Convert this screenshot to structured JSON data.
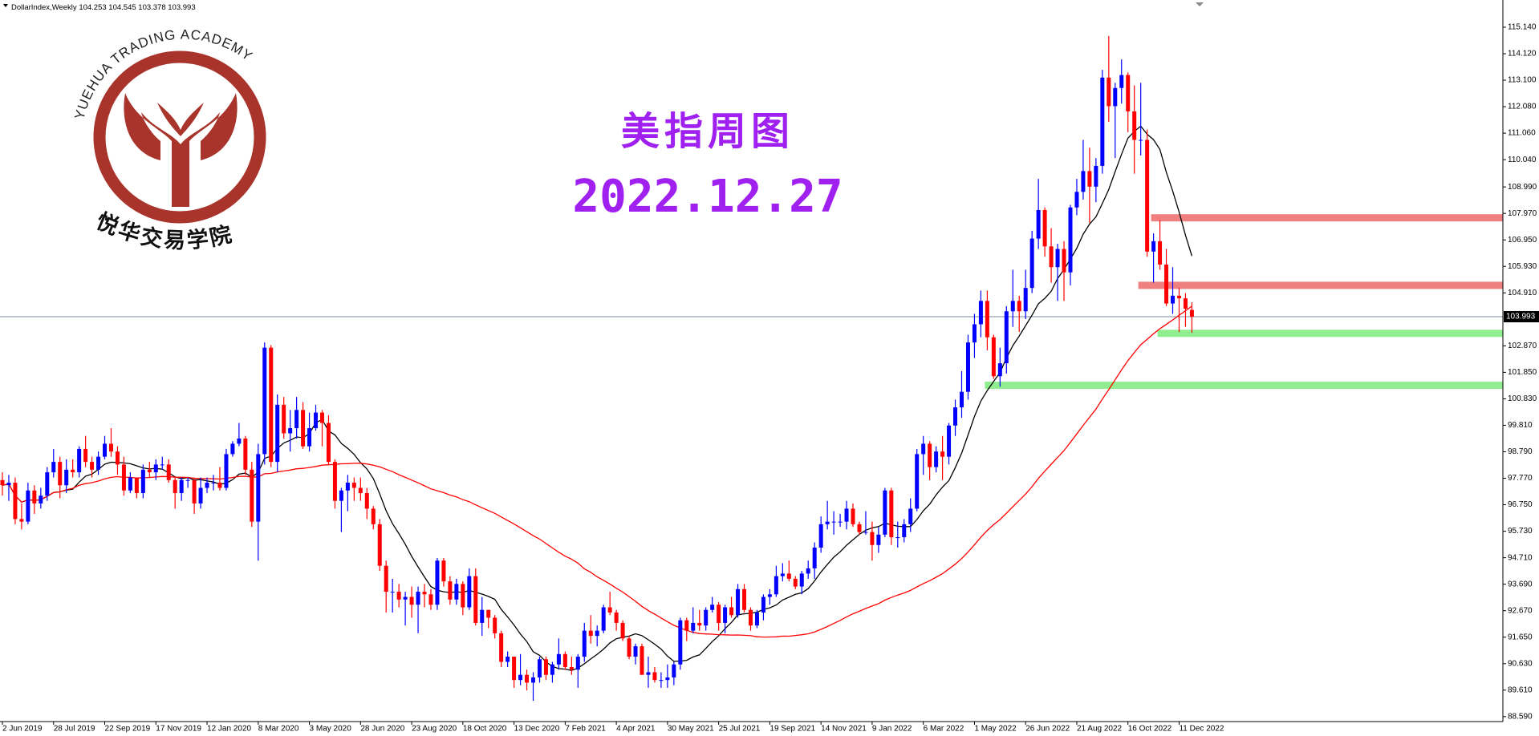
{
  "chart_data": {
    "type": "candlestick",
    "symbol": "DollarIndex,Weekly",
    "title": "美指周图",
    "subtitle": "2022.12.27",
    "categories": [
      "2 Jun 2019",
      null,
      null,
      null,
      null,
      null,
      null,
      null,
      "28 Jul 2019",
      null,
      null,
      null,
      null,
      null,
      null,
      null,
      "22 Sep 2019",
      null,
      null,
      null,
      null,
      null,
      null,
      null,
      "17 Nov 2019",
      null,
      null,
      null,
      null,
      null,
      null,
      null,
      "12 Jan 2020",
      null,
      null,
      null,
      null,
      null,
      null,
      null,
      "8 Mar 2020",
      null,
      null,
      null,
      null,
      null,
      null,
      null,
      "3 May 2020",
      null,
      null,
      null,
      null,
      null,
      null,
      null,
      "28 Jun 2020",
      null,
      null,
      null,
      null,
      null,
      null,
      null,
      "23 Aug 2020",
      null,
      null,
      null,
      null,
      null,
      null,
      null,
      "18 Oct 2020",
      null,
      null,
      null,
      null,
      null,
      null,
      null,
      "13 Dec 2020",
      null,
      null,
      null,
      null,
      null,
      null,
      null,
      "7 Feb 2021",
      null,
      null,
      null,
      null,
      null,
      null,
      null,
      "4 Apr 2021",
      null,
      null,
      null,
      null,
      null,
      null,
      null,
      "30 May 2021",
      null,
      null,
      null,
      null,
      null,
      null,
      null,
      "25 Jul 2021",
      null,
      null,
      null,
      null,
      null,
      null,
      null,
      "19 Sep 2021",
      null,
      null,
      null,
      null,
      null,
      null,
      null,
      "14 Nov 2021",
      null,
      null,
      null,
      null,
      null,
      null,
      null,
      "9 Jan 2022",
      null,
      null,
      null,
      null,
      null,
      null,
      null,
      "6 Mar 2022",
      null,
      null,
      null,
      null,
      null,
      null,
      null,
      "1 May 2022",
      null,
      null,
      null,
      null,
      null,
      null,
      null,
      "26 Jun 2022",
      null,
      null,
      null,
      null,
      null,
      null,
      null,
      "21 Aug 2022",
      null,
      null,
      null,
      null,
      null,
      null,
      null,
      "16 Oct 2022",
      null,
      null,
      null,
      null,
      null,
      null,
      null,
      "11 Dec 2022",
      null,
      null
    ],
    "open": [
      97.7,
      97.5,
      97.6,
      96.2,
      96.1,
      97.3,
      96.8,
      97.1,
      98.0,
      98.4,
      97.5,
      98.1,
      98.0,
      98.9,
      98.4,
      98.1,
      98.6,
      99.1,
      98.8,
      98.3,
      97.3,
      97.8,
      97.2,
      98.1,
      98.0,
      98.3,
      98.3,
      97.7,
      97.2,
      97.7,
      97.7,
      96.8,
      97.4,
      97.6,
      97.6,
      97.4,
      98.7,
      99.1,
      99.3,
      98.1,
      96.1,
      98.7,
      102.8,
      98.4,
      100.6,
      99.5,
      99.7,
      100.4,
      99.0,
      99.7,
      100.3,
      99.9,
      98.4,
      96.9,
      97.3,
      97.6,
      97.4,
      97.2,
      96.6,
      96.0,
      94.4,
      93.4,
      93.4,
      93.1,
      93.2,
      92.9,
      93.4,
      93.3,
      92.9,
      94.6,
      93.8,
      93.1,
      93.7,
      92.8,
      94.0,
      92.2,
      92.7,
      92.4,
      91.8,
      90.7,
      90.9,
      90.0,
      90.2,
      89.9,
      90.1,
      90.8,
      90.2,
      90.6,
      91.0,
      90.5,
      90.4,
      90.9,
      91.9,
      91.7,
      91.9,
      92.8,
      92.6,
      92.2,
      91.6,
      90.9,
      91.3,
      90.2,
      90.3,
      90.0,
      90.0,
      90.1,
      90.6,
      92.3,
      91.9,
      92.2,
      92.1,
      92.7,
      92.9,
      92.2,
      92.8,
      92.5,
      93.5,
      92.7,
      92.1,
      92.6,
      93.2,
      93.3,
      94.0,
      94.1,
      93.9,
      93.6,
      94.1,
      94.3,
      95.1,
      96.0,
      96.1,
      96.1,
      96.1,
      96.6,
      96.0,
      95.7,
      95.7,
      95.2,
      95.6,
      97.3,
      95.5,
      95.5,
      96.0,
      96.6,
      98.7,
      99.1,
      98.2,
      98.8,
      98.6,
      99.8,
      100.5,
      101.1,
      103.0,
      103.7,
      104.6,
      103.2,
      101.7,
      102.2,
      104.2,
      104.6,
      104.2,
      105.1,
      107.0,
      108.1,
      106.7,
      105.9,
      106.6,
      105.7,
      108.2,
      108.8,
      109.6,
      109.0,
      109.8,
      113.2,
      112.1,
      112.8,
      113.3,
      111.9,
      110.8,
      110.8,
      106.5,
      106.9,
      106.0,
      104.5,
      104.8,
      104.7,
      104.253
    ],
    "high": [
      98.0,
      97.9,
      97.8,
      96.8,
      97.6,
      97.5,
      97.4,
      98.2,
      98.9,
      98.6,
      98.5,
      98.5,
      99.0,
      99.4,
      98.6,
      98.8,
      99.4,
      99.7,
      99.0,
      98.6,
      98.0,
      97.8,
      98.3,
      98.4,
      98.5,
      98.6,
      98.5,
      97.8,
      97.8,
      97.8,
      97.8,
      97.8,
      97.8,
      97.9,
      98.2,
      98.9,
      99.2,
      99.9,
      99.4,
      98.4,
      99.1,
      103.0,
      102.9,
      101.0,
      100.9,
      100.4,
      100.9,
      100.7,
      100.3,
      100.6,
      100.4,
      100.2,
      98.5,
      97.4,
      97.9,
      97.8,
      97.8,
      97.4,
      96.7,
      96.2,
      94.6,
      93.9,
      93.7,
      93.4,
      93.6,
      93.6,
      93.7,
      93.5,
      94.7,
      94.7,
      94.0,
      93.9,
      93.8,
      94.3,
      94.3,
      93.2,
      92.7,
      92.5,
      91.9,
      91.1,
      90.9,
      91.0,
      90.4,
      90.3,
      90.9,
      90.9,
      90.7,
      91.6,
      91.1,
      90.9,
      91.0,
      92.2,
      92.5,
      92.1,
      92.9,
      93.4,
      92.7,
      92.3,
      91.7,
      91.4,
      91.4,
      90.9,
      90.5,
      90.3,
      90.6,
      90.7,
      92.4,
      92.4,
      92.8,
      92.7,
      92.8,
      93.2,
      93.0,
      92.9,
      93.2,
      93.7,
      93.7,
      92.8,
      92.7,
      93.3,
      93.5,
      94.4,
      94.5,
      94.6,
      94.0,
      94.2,
      94.6,
      95.3,
      96.3,
      96.9,
      96.5,
      96.4,
      96.9,
      96.8,
      96.1,
      96.5,
      96.1,
      95.9,
      97.4,
      97.4,
      96.1,
      96.2,
      97.0,
      98.9,
      99.4,
      99.2,
      99.0,
      99.4,
      99.9,
      100.8,
      101.9,
      103.3,
      104.1,
      105.0,
      105.0,
      103.3,
      102.8,
      104.4,
      105.8,
      104.8,
      105.8,
      107.3,
      109.3,
      108.2,
      107.4,
      106.8,
      106.9,
      108.3,
      109.3,
      110.8,
      110.5,
      110.1,
      113.5,
      114.8,
      113.0,
      113.9,
      113.4,
      112.9,
      113.0,
      111.2,
      107.2,
      107.7,
      106.6,
      105.9,
      105.1,
      104.9,
      104.545
    ],
    "low": [
      97.1,
      96.9,
      96.0,
      95.8,
      96.0,
      96.4,
      96.6,
      96.9,
      97.8,
      97.0,
      97.2,
      97.8,
      97.8,
      98.2,
      97.8,
      97.9,
      98.5,
      98.6,
      97.9,
      97.1,
      97.2,
      97.0,
      97.0,
      97.8,
      97.7,
      98.1,
      97.6,
      96.6,
      96.9,
      97.4,
      96.4,
      96.6,
      97.2,
      97.3,
      97.3,
      97.3,
      98.6,
      99.0,
      97.9,
      95.9,
      94.6,
      98.3,
      98.2,
      98.0,
      99.3,
      98.8,
      99.3,
      98.9,
      98.8,
      99.6,
      99.0,
      98.3,
      96.6,
      95.7,
      96.5,
      96.9,
      96.9,
      96.2,
      95.8,
      94.2,
      92.6,
      92.6,
      92.8,
      92.1,
      92.4,
      91.8,
      92.8,
      92.7,
      92.7,
      93.6,
      92.9,
      92.9,
      92.5,
      92.7,
      92.1,
      91.7,
      92.0,
      91.6,
      90.5,
      90.5,
      89.7,
      89.8,
      89.6,
      89.2,
      89.9,
      90.0,
      89.9,
      90.4,
      90.4,
      90.2,
      89.7,
      90.7,
      91.4,
      91.3,
      91.8,
      92.5,
      91.9,
      91.5,
      90.8,
      90.6,
      90.2,
      89.7,
      89.9,
      89.7,
      89.7,
      89.8,
      90.4,
      91.5,
      91.8,
      91.9,
      91.9,
      92.6,
      91.9,
      91.8,
      92.4,
      92.4,
      92.6,
      91.9,
      92.0,
      92.3,
      92.9,
      93.2,
      93.8,
      93.8,
      93.5,
      93.3,
      93.9,
      93.9,
      94.9,
      95.8,
      95.6,
      95.9,
      95.8,
      95.9,
      95.6,
      95.6,
      94.6,
      94.9,
      95.5,
      95.2,
      95.1,
      95.3,
      95.7,
      96.5,
      97.9,
      97.7,
      98.0,
      97.7,
      98.3,
      99.4,
      100.1,
      100.8,
      102.4,
      103.2,
      102.7,
      101.6,
      101.3,
      101.8,
      103.6,
      103.4,
      103.9,
      104.9,
      106.6,
      106.3,
      105.3,
      104.6,
      104.6,
      105.2,
      107.9,
      108.5,
      107.6,
      108.4,
      109.5,
      111.5,
      110.1,
      112.2,
      111.1,
      109.5,
      110.2,
      106.3,
      105.3,
      105.8,
      104.4,
      104.1,
      103.4,
      103.6,
      103.378
    ],
    "close": [
      97.5,
      97.6,
      96.2,
      96.1,
      97.3,
      96.8,
      97.1,
      98.0,
      98.4,
      97.5,
      98.1,
      98.0,
      98.9,
      98.4,
      98.1,
      98.6,
      99.1,
      98.8,
      98.3,
      97.3,
      97.8,
      97.2,
      98.1,
      98.0,
      98.3,
      98.3,
      97.7,
      97.2,
      97.7,
      97.7,
      96.8,
      97.4,
      97.6,
      97.6,
      97.4,
      98.7,
      99.1,
      99.3,
      98.1,
      96.1,
      98.7,
      102.8,
      98.4,
      100.6,
      99.5,
      99.7,
      100.4,
      99.0,
      99.7,
      100.3,
      99.9,
      98.4,
      96.9,
      97.3,
      97.6,
      97.4,
      97.2,
      96.6,
      96.0,
      94.4,
      93.4,
      93.4,
      93.1,
      93.2,
      92.9,
      93.4,
      93.3,
      92.9,
      94.6,
      93.8,
      93.1,
      93.7,
      92.8,
      94.0,
      92.2,
      92.7,
      92.4,
      91.8,
      90.7,
      90.9,
      90.0,
      90.2,
      89.9,
      90.1,
      90.8,
      90.2,
      90.6,
      91.0,
      90.5,
      90.4,
      90.9,
      91.9,
      91.7,
      91.9,
      92.8,
      92.6,
      92.2,
      91.6,
      90.9,
      91.3,
      90.2,
      90.3,
      90.0,
      90.0,
      90.1,
      90.6,
      92.3,
      91.9,
      92.2,
      92.1,
      92.7,
      92.9,
      92.2,
      92.8,
      92.5,
      93.5,
      92.7,
      92.1,
      92.6,
      93.2,
      93.3,
      94.0,
      94.1,
      93.9,
      93.6,
      94.1,
      94.3,
      95.1,
      96.0,
      96.1,
      96.1,
      96.1,
      96.6,
      96.0,
      95.7,
      95.7,
      95.2,
      95.6,
      97.3,
      95.5,
      95.5,
      96.0,
      96.6,
      98.7,
      99.1,
      98.2,
      98.8,
      98.6,
      99.8,
      100.5,
      101.1,
      103.0,
      103.7,
      104.6,
      103.2,
      101.7,
      102.2,
      104.2,
      104.6,
      104.2,
      105.1,
      107.0,
      108.1,
      106.7,
      105.9,
      106.6,
      105.7,
      108.2,
      108.8,
      109.6,
      109.0,
      109.8,
      113.2,
      112.1,
      112.8,
      113.3,
      111.9,
      110.8,
      110.8,
      106.5,
      106.9,
      106.0,
      104.5,
      104.8,
      104.7,
      104.3,
      103.993
    ],
    "up_color": "#0000ff",
    "down_color": "#ff0000",
    "ylim": [
      88.4,
      115.88
    ],
    "yticks": [
      {
        "value": 115.14,
        "label": "115.140"
      },
      {
        "value": 114.12,
        "label": "114.120"
      },
      {
        "value": 113.1,
        "label": "113.100"
      },
      {
        "value": 112.08,
        "label": "112.080"
      },
      {
        "value": 111.06,
        "label": "111.060"
      },
      {
        "value": 110.04,
        "label": "110.040"
      },
      {
        "value": 108.99,
        "label": "108.990"
      },
      {
        "value": 107.97,
        "label": "107.970"
      },
      {
        "value": 106.95,
        "label": "106.950"
      },
      {
        "value": 105.93,
        "label": "105.930"
      },
      {
        "value": 104.91,
        "label": "104.910"
      },
      {
        "value": 102.87,
        "label": "102.870"
      },
      {
        "value": 101.85,
        "label": "101.850"
      },
      {
        "value": 100.83,
        "label": "100.830"
      },
      {
        "value": 99.81,
        "label": "99.810"
      },
      {
        "value": 98.79,
        "label": "98.790"
      },
      {
        "value": 97.77,
        "label": "97.770"
      },
      {
        "value": 96.75,
        "label": "96.750"
      },
      {
        "value": 95.73,
        "label": "95.730"
      },
      {
        "value": 94.71,
        "label": "94.710"
      },
      {
        "value": 93.69,
        "label": "93.690"
      },
      {
        "value": 92.67,
        "label": "92.670"
      },
      {
        "value": 91.65,
        "label": "91.650"
      },
      {
        "value": 90.63,
        "label": "90.630"
      },
      {
        "value": 89.61,
        "label": "89.610"
      },
      {
        "value": 88.59,
        "label": "88.590"
      }
    ],
    "indicators": [
      {
        "type": "sma",
        "period": 10,
        "color": "#000000"
      },
      {
        "type": "sma",
        "period": 50,
        "color": "#ff0000"
      }
    ],
    "levels": [
      {
        "value": 107.8,
        "color": "#f08080"
      },
      {
        "value": 105.2,
        "color": "#f08080"
      },
      {
        "value": 103.35,
        "color": "#90ee90"
      },
      {
        "value": 101.35,
        "color": "#90ee90"
      }
    ],
    "last_price_line_color": "#7a8aa0"
  },
  "logo": {
    "name_en": "YUEHUA TRADING ACADEMY",
    "name_cn": "悦华交易学院"
  }
}
